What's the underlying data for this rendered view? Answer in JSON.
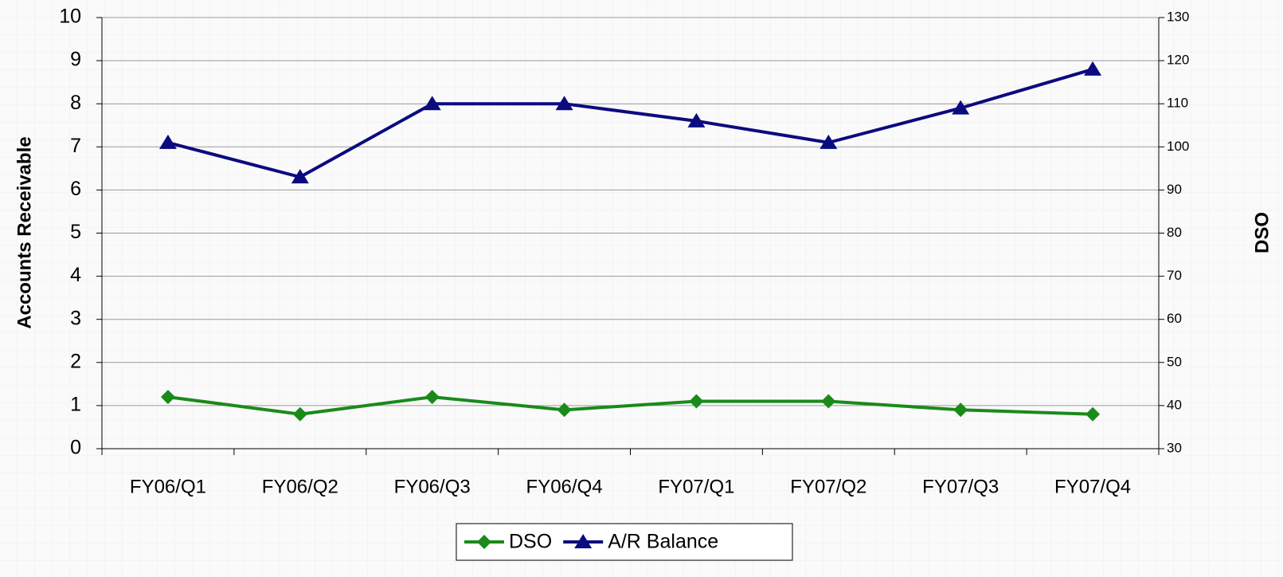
{
  "chart_data": {
    "type": "line",
    "y_label": "Accounts Receivable",
    "y2_label": "DSO",
    "categories": [
      "FY06/Q1",
      "FY06/Q2",
      "FY06/Q3",
      "FY06/Q4",
      "FY07/Q1",
      "FY07/Q2",
      "FY07/Q3",
      "FY07/Q4"
    ],
    "series": [
      {
        "name": "DSO",
        "color": "#1a8a1a",
        "marker": "diamond",
        "axis": "y2",
        "values": [
          42,
          38,
          42,
          39,
          41,
          41,
          39,
          38
        ]
      },
      {
        "name": "A/R Balance",
        "color": "#0b0b80",
        "marker": "triangle",
        "axis": "y",
        "values": [
          7.1,
          6.3,
          8.0,
          8.0,
          7.6,
          7.1,
          7.9,
          8.8
        ]
      }
    ],
    "ylim": [
      0,
      10
    ],
    "yticks": [
      0,
      1,
      2,
      3,
      4,
      5,
      6,
      7,
      8,
      9,
      10
    ],
    "y2lim": [
      30,
      130
    ],
    "y2ticks": [
      30,
      40,
      50,
      60,
      70,
      80,
      90,
      100,
      110,
      120,
      130
    ],
    "grid": true,
    "legend": "bottom"
  }
}
